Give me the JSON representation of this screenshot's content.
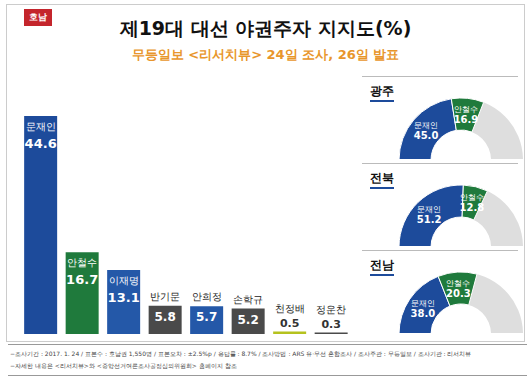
{
  "badge": "호남",
  "chart_data": [
    {
      "type": "bar",
      "title": "제19대 대선 야권주자 지지도(%)",
      "subtitle": "무등일보 <리서치뷰> 24일 조사, 26일 발표",
      "categories": [
        "문재인",
        "안철수",
        "이재명",
        "반기문",
        "안희정",
        "손학규",
        "천정배",
        "정운찬"
      ],
      "values": [
        44.6,
        16.7,
        13.1,
        5.8,
        5.7,
        5.2,
        0.5,
        0.3
      ],
      "colors": [
        "#1d4b9b",
        "#1f7a3c",
        "#2458a8",
        "#4a4a4a",
        "#2458a8",
        "#4a4a4a",
        "#b5c21e",
        "#4a4a4a"
      ],
      "data_labels": true,
      "tick_labels": false
    },
    {
      "type": "pie",
      "title": "광주",
      "categories": [
        "문재인",
        "안철수"
      ],
      "values": [
        45.0,
        16.9
      ],
      "value_labels": [
        "45.0",
        "16.9"
      ],
      "colors": [
        "#1d4b9b",
        "#1f7a3c"
      ],
      "ylim": [
        0,
        100
      ],
      "data_labels": true
    },
    {
      "type": "pie",
      "title": "전북",
      "categories": [
        "문재인",
        "안철수"
      ],
      "values": [
        51.2,
        12.8
      ],
      "value_labels": [
        "51.2",
        "12.8"
      ],
      "colors": [
        "#1d4b9b",
        "#1f7a3c"
      ],
      "ylim": [
        0,
        100
      ],
      "data_labels": true
    },
    {
      "type": "pie",
      "title": "전남",
      "categories": [
        "문재인",
        "안철수"
      ],
      "values": [
        38.0,
        20.3
      ],
      "value_labels": [
        "38.0",
        "20.3"
      ],
      "colors": [
        "#1d4b9b",
        "#1f7a3c"
      ],
      "ylim": [
        0,
        100
      ],
      "data_labels": true
    }
  ],
  "footer": [
    "−조사기간 : 2017. 1. 24 / 표본수 : 호남권 1,550명 / 표본오차 : ±2.5%p / 응답률 : 8.7% / 조사방법 : ARS 유·무선 혼합조사 / 조사주관 : 무등일보 / 조사기관 : 리서치뷰",
    "−자세한 내용은 <리서치뷰>와 <중앙선거여론조사공정심의위원회> 홈페이지 참조"
  ]
}
